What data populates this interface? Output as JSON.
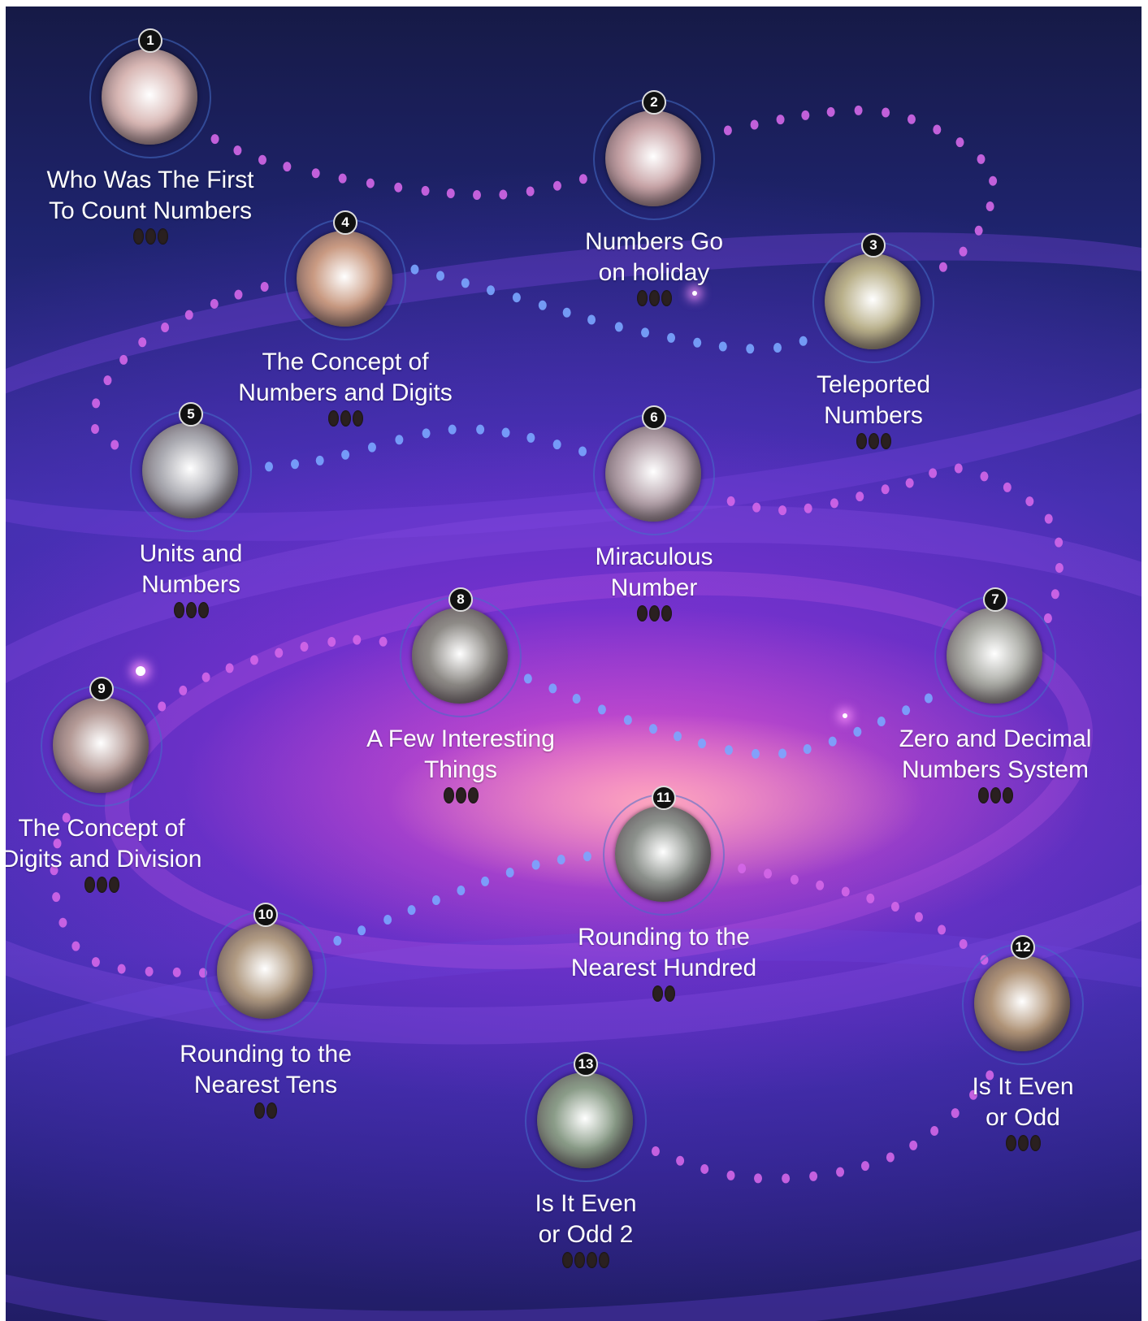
{
  "colors": {
    "path_pink": "#d467e8",
    "path_blue": "#7aa6ff",
    "label_text": "#ffffff",
    "badge_bg": "#111111",
    "stars_empty": "#2a2020"
  },
  "levels": [
    {
      "number": "1",
      "title": "Who Was The First\nTo Count Numbers",
      "stars_total": 3,
      "stars_earned": 0,
      "planet_color": "#d8b7b4"
    },
    {
      "number": "2",
      "title": "Numbers Go\non holiday",
      "stars_total": 3,
      "stars_earned": 0,
      "planet_color": "#c9a5a8"
    },
    {
      "number": "3",
      "title": "Teleported\nNumbers",
      "stars_total": 3,
      "stars_earned": 0,
      "planet_color": "#b9b08a"
    },
    {
      "number": "4",
      "title": "The Concept of\nNumbers and Digits",
      "stars_total": 3,
      "stars_earned": 0,
      "planet_color": "#c99a82"
    },
    {
      "number": "5",
      "title": "Units and\nNumbers",
      "stars_total": 3,
      "stars_earned": 0,
      "planet_color": "#a9a9b0"
    },
    {
      "number": "6",
      "title": "Miraculous\nNumber",
      "stars_total": 3,
      "stars_earned": 0,
      "planet_color": "#b7a5ad"
    },
    {
      "number": "7",
      "title": "Zero and Decimal\nNumbers System",
      "stars_total": 3,
      "stars_earned": 0,
      "planet_color": "#a9aaa4"
    },
    {
      "number": "8",
      "title": "A Few Interesting\nThings",
      "stars_total": 3,
      "stars_earned": 0,
      "planet_color": "#8d8a86"
    },
    {
      "number": "9",
      "title": "The Concept of\nDigits and Division",
      "stars_total": 3,
      "stars_earned": 0,
      "planet_color": "#b49a96"
    },
    {
      "number": "10",
      "title": "Rounding to the\nNearest Tens",
      "stars_total": 2,
      "stars_earned": 0,
      "planet_color": "#b09a82"
    },
    {
      "number": "11",
      "title": "Rounding to the\nNearest Hundred",
      "stars_total": 2,
      "stars_earned": 0,
      "planet_color": "#8c918c"
    },
    {
      "number": "12",
      "title": "Is It Even\nor Odd",
      "stars_total": 3,
      "stars_earned": 0,
      "planet_color": "#b09478"
    },
    {
      "number": "13",
      "title": "Is It Even\nor Odd 2",
      "stars_total": 4,
      "stars_earned": 0,
      "planet_color": "#8a9c88"
    }
  ]
}
